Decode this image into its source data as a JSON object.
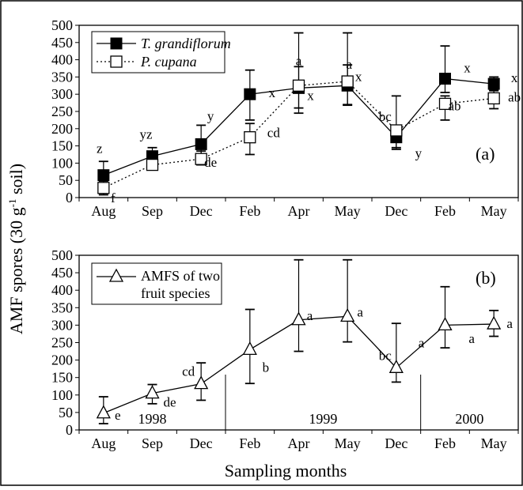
{
  "charts": {
    "y_label_main": "AMF spores (30 g",
    "y_label_sup": "-1",
    "y_label_tail": " soil)",
    "x_label": "Sampling months"
  },
  "chart_data": [
    {
      "type": "line",
      "panel_label": "(a)",
      "categories": [
        "Aug",
        "Sep",
        "Dec",
        "Feb",
        "Apr",
        "May",
        "Dec",
        "Feb",
        "May"
      ],
      "ylim": [
        0,
        500
      ],
      "yticks": [
        0,
        50,
        100,
        150,
        200,
        250,
        300,
        350,
        400,
        450,
        500
      ],
      "legend": "top-left",
      "series": [
        {
          "name": "T. grandiflorum",
          "style": "solid",
          "marker": "filled-square",
          "color": "#000000",
          "values": [
            65,
            120,
            155,
            300,
            318,
            325,
            175,
            345,
            330
          ],
          "err_low": [
            25,
            105,
            95,
            225,
            245,
            268,
            140,
            305,
            310
          ],
          "err_high": [
            105,
            145,
            210,
            370,
            380,
            385,
            210,
            440,
            350
          ],
          "letters": [
            "z",
            "yz",
            "y",
            "x",
            "x",
            "x",
            "y",
            "x",
            "x"
          ]
        },
        {
          "name": "P. cupana",
          "style": "dotted",
          "marker": "open-square",
          "color": "#000000",
          "values": [
            28,
            95,
            112,
            175,
            325,
            337,
            195,
            272,
            288
          ],
          "err_low": [
            8,
            85,
            95,
            125,
            260,
            270,
            145,
            225,
            258
          ],
          "err_high": [
            48,
            110,
            135,
            215,
            478,
            478,
            295,
            295,
            312
          ],
          "letters": [
            "f",
            "",
            "de",
            "cd",
            "a",
            "a",
            "bc",
            "ab",
            "ab"
          ]
        }
      ]
    },
    {
      "type": "line",
      "panel_label": "(b)",
      "categories": [
        "Aug",
        "Sep",
        "Dec",
        "Feb",
        "Apr",
        "May",
        "Dec",
        "Feb",
        "May"
      ],
      "ylim": [
        0,
        500
      ],
      "yticks": [
        0,
        50,
        100,
        150,
        200,
        250,
        300,
        350,
        400,
        450,
        500
      ],
      "legend": "top-left",
      "series": [
        {
          "name": "AMFS of two fruit species",
          "legend_lines": [
            "AMFS of two",
            "fruit species"
          ],
          "style": "solid",
          "marker": "open-triangle",
          "color": "#000000",
          "values": [
            48,
            105,
            132,
            230,
            315,
            325,
            178,
            300,
            303
          ],
          "err_low": [
            18,
            75,
            85,
            133,
            225,
            252,
            137,
            235,
            268
          ],
          "err_high": [
            95,
            130,
            192,
            345,
            487,
            487,
            305,
            410,
            342
          ],
          "letters": [
            "e",
            "de",
            "cd",
            "b",
            "a",
            "a",
            "bc",
            "a",
            "a"
          ]
        }
      ],
      "years": [
        "1998",
        "1999",
        "2000"
      ]
    }
  ]
}
